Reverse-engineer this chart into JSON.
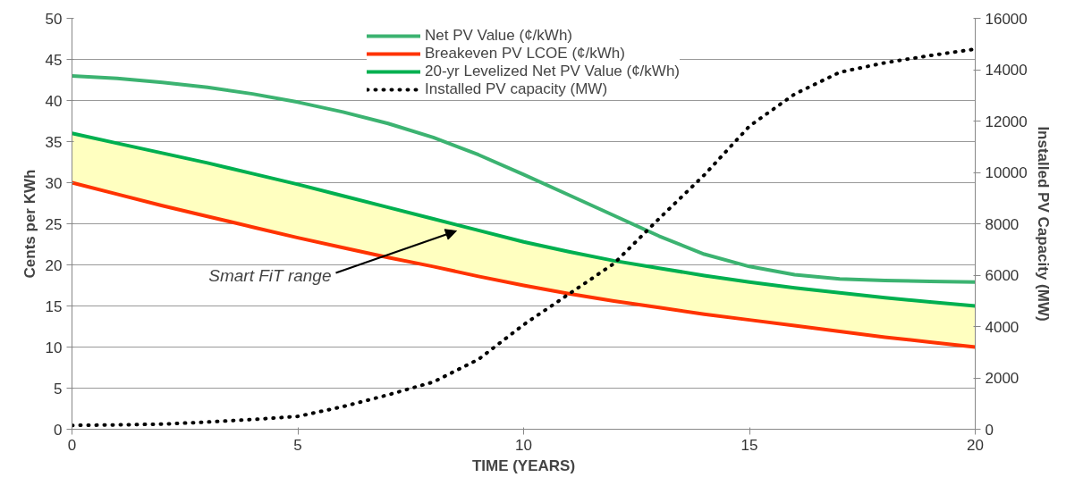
{
  "chart_data": {
    "type": "line",
    "xlabel": "TIME (YEARS)",
    "ylabel": "Cents per KWh",
    "y2label": "Installed PV Capacity (MW)",
    "x": [
      0,
      1,
      2,
      3,
      4,
      5,
      6,
      7,
      8,
      9,
      10,
      11,
      12,
      13,
      14,
      15,
      16,
      17,
      18,
      19,
      20
    ],
    "series": [
      {
        "name": "Net PV Value (¢/kWh)",
        "color": "#3cb371",
        "values": [
          43,
          42.7,
          42.2,
          41.6,
          40.8,
          39.8,
          38.6,
          37.2,
          35.5,
          33.4,
          31,
          28.5,
          26,
          23.5,
          21.3,
          19.8,
          18.8,
          18.3,
          18.1,
          18,
          17.9
        ]
      },
      {
        "name": "Breakeven PV LCOE (¢/kWh)",
        "color": "#ff3300",
        "values": [
          30,
          28.6,
          27.2,
          25.9,
          24.6,
          23.3,
          22.1,
          20.9,
          19.8,
          18.6,
          17.5,
          16.5,
          15.6,
          14.8,
          14,
          13.3,
          12.6,
          11.9,
          11.2,
          10.6,
          10
        ]
      },
      {
        "name": "20-yr Levelized Net PV Value (¢/kWh)",
        "color": "#00b050",
        "values": [
          36,
          34.8,
          33.6,
          32.4,
          31.1,
          29.8,
          28.4,
          27,
          25.6,
          24.2,
          22.8,
          21.6,
          20.5,
          19.6,
          18.7,
          17.9,
          17.2,
          16.6,
          16,
          15.5,
          15
        ],
        "lower": [
          30,
          28.6,
          27.2,
          25.9,
          24.6,
          23.3,
          22.1,
          20.9,
          19.8,
          18.6,
          17.5,
          16.5,
          15.6,
          14.8,
          14,
          13.3,
          12.6,
          11.9,
          11.2,
          10.6,
          10
        ],
        "upper": [
          36,
          34.8,
          33.6,
          32.4,
          31.1,
          29.8,
          28.4,
          27,
          25.6,
          24.2,
          22.8,
          21.6,
          20.5,
          19.6,
          18.7,
          17.9,
          17.2,
          16.6,
          16,
          15.5,
          15
        ]
      },
      {
        "name": "Installed PV capacity (MW)",
        "color": "#000000",
        "axis": "y2",
        "line_style": "dotted",
        "values": [
          150,
          170,
          200,
          280,
          380,
          500,
          880,
          1340,
          1840,
          2720,
          4070,
          5260,
          6450,
          8200,
          9900,
          11800,
          13050,
          13900,
          14270,
          14550,
          14800
        ]
      }
    ],
    "xlim": [
      0,
      20
    ],
    "xticks": [
      0,
      5,
      10,
      15,
      20
    ],
    "ylim": [
      0,
      50
    ],
    "yticks": [
      0,
      5,
      10,
      15,
      20,
      25,
      30,
      35,
      40,
      45,
      50
    ],
    "y2lim": [
      0,
      16000
    ],
    "y2ticks": [
      0,
      2000,
      4000,
      6000,
      8000,
      10000,
      12000,
      14000,
      16000
    ],
    "grid": "y",
    "legend": "top",
    "annotations": [
      "Smart FiT range"
    ]
  }
}
